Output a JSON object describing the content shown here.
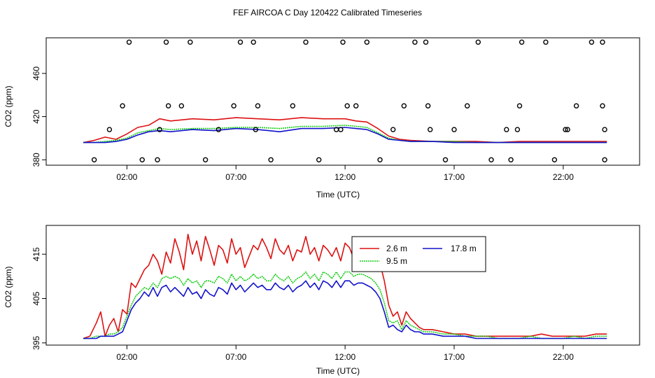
{
  "title": "FEF AIRCOA C  Day 120422  Calibrated Timeseries",
  "colors": {
    "red": "#dd1111",
    "green": "#11cc11",
    "blue": "#1111cc",
    "flag": "#000000"
  },
  "chart_data": [
    {
      "type": "line",
      "panel": "top",
      "xlabel": "Time (UTC)",
      "ylabel": "CO2 (ppm)",
      "xlim": [
        -1.7,
        25.5
      ],
      "ylim": [
        375,
        493
      ],
      "x_ticks": [
        2,
        7,
        12,
        17,
        22
      ],
      "x_tick_labels": [
        "02:00",
        "07:00",
        "12:00",
        "17:00",
        "22:00"
      ],
      "y_ticks": [
        380,
        420,
        460
      ],
      "y_tick_labels": [
        "380",
        "420",
        "460"
      ],
      "series": [
        {
          "color": "red",
          "x": [
            0,
            0.5,
            1,
            1.5,
            2,
            2.5,
            3,
            3.5,
            4,
            5,
            6,
            7,
            8,
            9,
            10,
            11,
            12,
            12.5,
            13,
            13.5,
            14,
            14.5,
            15,
            16,
            17,
            18,
            19,
            20,
            21,
            22,
            23,
            24
          ],
          "y": [
            396,
            398,
            401,
            399,
            404,
            410,
            412,
            418,
            416,
            418,
            417,
            419,
            418,
            417,
            419,
            418,
            418,
            416,
            415,
            409,
            402,
            399,
            398,
            397,
            397,
            397,
            396,
            397,
            397,
            397,
            397,
            397
          ]
        },
        {
          "color": "green",
          "x": [
            0,
            0.5,
            1,
            1.5,
            2,
            2.5,
            3,
            3.5,
            4,
            5,
            6,
            7,
            8,
            9,
            10,
            11,
            12,
            12.5,
            13,
            13.5,
            14,
            14.5,
            15,
            16,
            17,
            18,
            19,
            20,
            21,
            22,
            23,
            24
          ],
          "y": [
            396,
            396,
            397,
            398,
            400,
            405,
            407,
            409,
            408,
            409,
            409,
            410,
            410,
            409,
            411,
            411,
            412,
            411,
            410,
            405,
            400,
            398,
            397,
            397,
            397,
            396,
            396,
            396,
            396,
            396,
            396,
            396
          ]
        },
        {
          "color": "blue",
          "x": [
            0,
            0.5,
            1,
            1.5,
            2,
            2.5,
            3,
            3.5,
            4,
            5,
            6,
            7,
            8,
            9,
            10,
            11,
            12,
            12.5,
            13,
            13.5,
            14,
            14.5,
            15,
            16,
            17,
            18,
            19,
            20,
            21,
            22,
            23,
            24
          ],
          "y": [
            396,
            396,
            396,
            397,
            399,
            403,
            406,
            407,
            406,
            408,
            407,
            409,
            408,
            406,
            409,
            409,
            410,
            409,
            408,
            404,
            399,
            398,
            397,
            397,
            396,
            396,
            396,
            396,
            396,
            396,
            396,
            396
          ]
        }
      ],
      "points": {
        "color": "flag",
        "x": [
          0.5,
          1.2,
          1.8,
          2.1,
          2.7,
          3.4,
          3.5,
          3.8,
          3.9,
          4.5,
          4.9,
          5.6,
          6.2,
          6.9,
          7.2,
          7.8,
          7.9,
          8.0,
          8.6,
          9.6,
          10.2,
          10.8,
          11.6,
          11.8,
          11.9,
          12.1,
          12.5,
          13.0,
          13.6,
          14.2,
          14.7,
          15.2,
          15.7,
          15.8,
          15.9,
          16.6,
          17.0,
          17.6,
          18.1,
          18.7,
          19.4,
          19.6,
          19.9,
          20.0,
          20.1,
          21.2,
          21.6,
          22.1,
          22.2,
          22.6,
          23.3,
          23.8,
          23.8,
          23.9,
          23.9
        ],
        "y": [
          380,
          408,
          430,
          489,
          380,
          380,
          408,
          489,
          430,
          430,
          489,
          380,
          408,
          430,
          489,
          489,
          408,
          430,
          380,
          430,
          489,
          380,
          408,
          408,
          489,
          430,
          430,
          489,
          380,
          408,
          430,
          489,
          489,
          430,
          408,
          380,
          408,
          430,
          489,
          380,
          408,
          380,
          408,
          430,
          489,
          489,
          380,
          408,
          408,
          430,
          489,
          489,
          430,
          408,
          380
        ]
      }
    },
    {
      "type": "line",
      "panel": "bottom",
      "xlabel": "Time (UTC)",
      "ylabel": "CO2 (ppm)",
      "xlim": [
        -1.7,
        25.5
      ],
      "ylim": [
        394.5,
        421.5
      ],
      "x_ticks": [
        2,
        7,
        12,
        17,
        22
      ],
      "x_tick_labels": [
        "02:00",
        "07:00",
        "12:00",
        "17:00",
        "22:00"
      ],
      "y_ticks": [
        395,
        405,
        415
      ],
      "y_tick_labels": [
        "395",
        "405",
        "415"
      ],
      "legend": {
        "placement": "top-right-center"
      },
      "series": [
        {
          "name": "2.6 m",
          "color": "red",
          "x": [
            0,
            0.3,
            0.6,
            0.8,
            1.0,
            1.2,
            1.4,
            1.6,
            1.8,
            2.0,
            2.2,
            2.4,
            2.6,
            2.8,
            3.0,
            3.2,
            3.4,
            3.6,
            3.8,
            4.0,
            4.2,
            4.4,
            4.6,
            4.8,
            5.0,
            5.2,
            5.4,
            5.6,
            5.8,
            6.0,
            6.2,
            6.4,
            6.6,
            6.8,
            7.0,
            7.2,
            7.4,
            7.6,
            7.8,
            8.0,
            8.2,
            8.4,
            8.6,
            8.8,
            9.0,
            9.2,
            9.4,
            9.6,
            9.8,
            10.0,
            10.2,
            10.4,
            10.6,
            10.8,
            11.0,
            11.2,
            11.4,
            11.6,
            11.8,
            12.0,
            12.2,
            12.4,
            12.6,
            12.8,
            13.0,
            13.2,
            13.4,
            13.6,
            13.8,
            14.0,
            14.2,
            14.4,
            14.6,
            14.8,
            15.0,
            15.2,
            15.4,
            15.6,
            15.8,
            16.0,
            16.5,
            17.0,
            17.5,
            18.0,
            18.5,
            19.0,
            19.5,
            20.0,
            20.5,
            21.0,
            21.5,
            22.0,
            22.5,
            23.0,
            23.5,
            24.0
          ],
          "y": [
            396.0,
            396.5,
            399.5,
            402.0,
            396.5,
            399.0,
            400.5,
            397.5,
            402.5,
            401.5,
            408.5,
            407.5,
            409.5,
            411.5,
            412.5,
            415.0,
            413.5,
            410.5,
            415.5,
            413.0,
            418.5,
            415.5,
            411.5,
            419.5,
            415.0,
            418.0,
            413.5,
            419.0,
            416.0,
            412.5,
            417.0,
            416.0,
            413.0,
            418.5,
            415.0,
            416.5,
            412.0,
            414.5,
            417.0,
            416.0,
            418.5,
            416.5,
            414.0,
            418.5,
            416.0,
            415.0,
            417.0,
            413.5,
            416.0,
            415.5,
            419.0,
            415.0,
            416.5,
            413.5,
            417.0,
            416.0,
            414.5,
            416.5,
            413.5,
            417.5,
            416.5,
            414.0,
            416.0,
            415.5,
            417.0,
            416.0,
            414.5,
            413.0,
            409.0,
            403.5,
            401.0,
            402.0,
            399.0,
            402.0,
            400.5,
            399.5,
            398.5,
            398.0,
            398.0,
            398.0,
            397.5,
            397.0,
            397.0,
            396.5,
            396.5,
            396.5,
            396.5,
            396.5,
            396.5,
            397.0,
            396.5,
            396.5,
            396.5,
            396.5,
            397.0,
            397.0
          ]
        },
        {
          "name": "9.5 m",
          "color": "green",
          "x": [
            0,
            0.3,
            0.6,
            0.8,
            1.0,
            1.2,
            1.4,
            1.6,
            1.8,
            2.0,
            2.2,
            2.4,
            2.6,
            2.8,
            3.0,
            3.2,
            3.4,
            3.6,
            3.8,
            4.0,
            4.2,
            4.4,
            4.6,
            4.8,
            5.0,
            5.2,
            5.4,
            5.6,
            5.8,
            6.0,
            6.2,
            6.4,
            6.6,
            6.8,
            7.0,
            7.2,
            7.4,
            7.6,
            7.8,
            8.0,
            8.2,
            8.4,
            8.6,
            8.8,
            9.0,
            9.2,
            9.4,
            9.6,
            9.8,
            10.0,
            10.2,
            10.4,
            10.6,
            10.8,
            11.0,
            11.2,
            11.4,
            11.6,
            11.8,
            12.0,
            12.2,
            12.4,
            12.6,
            12.8,
            13.0,
            13.2,
            13.4,
            13.6,
            13.8,
            14.0,
            14.2,
            14.4,
            14.6,
            14.8,
            15.0,
            15.2,
            15.4,
            15.6,
            15.8,
            16.0,
            16.5,
            17.0,
            17.5,
            18.0,
            18.5,
            19.0,
            19.5,
            20.0,
            20.5,
            21.0,
            21.5,
            22.0,
            22.5,
            23.0,
            23.5,
            24.0
          ],
          "y": [
            396.0,
            396.0,
            396.5,
            396.5,
            396.5,
            397.0,
            397.0,
            397.5,
            398.5,
            401.0,
            403.5,
            405.5,
            406.5,
            407.5,
            407.0,
            408.5,
            407.5,
            409.5,
            410.0,
            409.5,
            410.0,
            409.5,
            408.0,
            409.5,
            408.5,
            409.0,
            407.5,
            409.0,
            409.0,
            408.5,
            410.0,
            409.5,
            408.5,
            410.5,
            409.0,
            410.0,
            409.0,
            409.5,
            410.5,
            409.5,
            410.0,
            409.0,
            409.0,
            410.5,
            409.5,
            409.0,
            410.0,
            408.5,
            409.5,
            410.0,
            411.0,
            409.5,
            410.5,
            409.0,
            411.0,
            410.5,
            409.5,
            411.0,
            409.5,
            411.0,
            411.0,
            410.0,
            410.5,
            410.5,
            410.0,
            409.5,
            408.5,
            407.0,
            404.0,
            400.0,
            399.5,
            400.0,
            398.0,
            400.0,
            399.0,
            398.5,
            398.0,
            397.5,
            397.5,
            397.5,
            397.0,
            397.0,
            396.5,
            396.5,
            396.5,
            396.0,
            396.0,
            396.0,
            396.5,
            396.0,
            396.0,
            396.0,
            396.5,
            396.0,
            396.5,
            396.5
          ]
        },
        {
          "name": "17.8 m",
          "color": "blue",
          "x": [
            0,
            0.3,
            0.6,
            0.8,
            1.0,
            1.2,
            1.4,
            1.6,
            1.8,
            2.0,
            2.2,
            2.4,
            2.6,
            2.8,
            3.0,
            3.2,
            3.4,
            3.6,
            3.8,
            4.0,
            4.2,
            4.4,
            4.6,
            4.8,
            5.0,
            5.2,
            5.4,
            5.6,
            5.8,
            6.0,
            6.2,
            6.4,
            6.6,
            6.8,
            7.0,
            7.2,
            7.4,
            7.6,
            7.8,
            8.0,
            8.2,
            8.4,
            8.6,
            8.8,
            9.0,
            9.2,
            9.4,
            9.6,
            9.8,
            10.0,
            10.2,
            10.4,
            10.6,
            10.8,
            11.0,
            11.2,
            11.4,
            11.6,
            11.8,
            12.0,
            12.2,
            12.4,
            12.6,
            12.8,
            13.0,
            13.2,
            13.4,
            13.6,
            13.8,
            14.0,
            14.2,
            14.4,
            14.6,
            14.8,
            15.0,
            15.2,
            15.4,
            15.6,
            15.8,
            16.0,
            16.5,
            17.0,
            17.5,
            18.0,
            18.5,
            19.0,
            19.5,
            20.0,
            20.5,
            21.0,
            21.5,
            22.0,
            22.5,
            23.0,
            23.5,
            24.0
          ],
          "y": [
            396.0,
            396.0,
            396.0,
            396.5,
            396.5,
            396.5,
            396.5,
            397.0,
            397.5,
            400.0,
            402.5,
            404.0,
            405.0,
            406.5,
            405.5,
            407.5,
            405.5,
            407.5,
            408.0,
            406.5,
            407.5,
            406.5,
            405.5,
            407.5,
            406.0,
            406.5,
            405.0,
            407.0,
            406.0,
            405.5,
            407.5,
            407.0,
            406.0,
            408.5,
            407.0,
            408.0,
            406.5,
            407.5,
            408.5,
            407.5,
            408.0,
            407.0,
            407.0,
            408.5,
            407.5,
            407.0,
            408.0,
            406.5,
            407.5,
            408.0,
            409.0,
            407.5,
            408.5,
            407.0,
            409.0,
            408.5,
            407.5,
            409.0,
            407.5,
            409.0,
            409.0,
            408.0,
            408.5,
            408.5,
            408.0,
            407.5,
            406.5,
            405.0,
            402.0,
            398.5,
            399.0,
            398.0,
            397.5,
            399.0,
            398.0,
            397.5,
            397.5,
            397.0,
            397.0,
            397.0,
            396.5,
            396.5,
            396.5,
            396.0,
            396.0,
            396.0,
            396.0,
            396.0,
            396.0,
            396.0,
            396.0,
            396.0,
            396.0,
            396.0,
            396.0,
            396.0
          ]
        }
      ]
    }
  ]
}
